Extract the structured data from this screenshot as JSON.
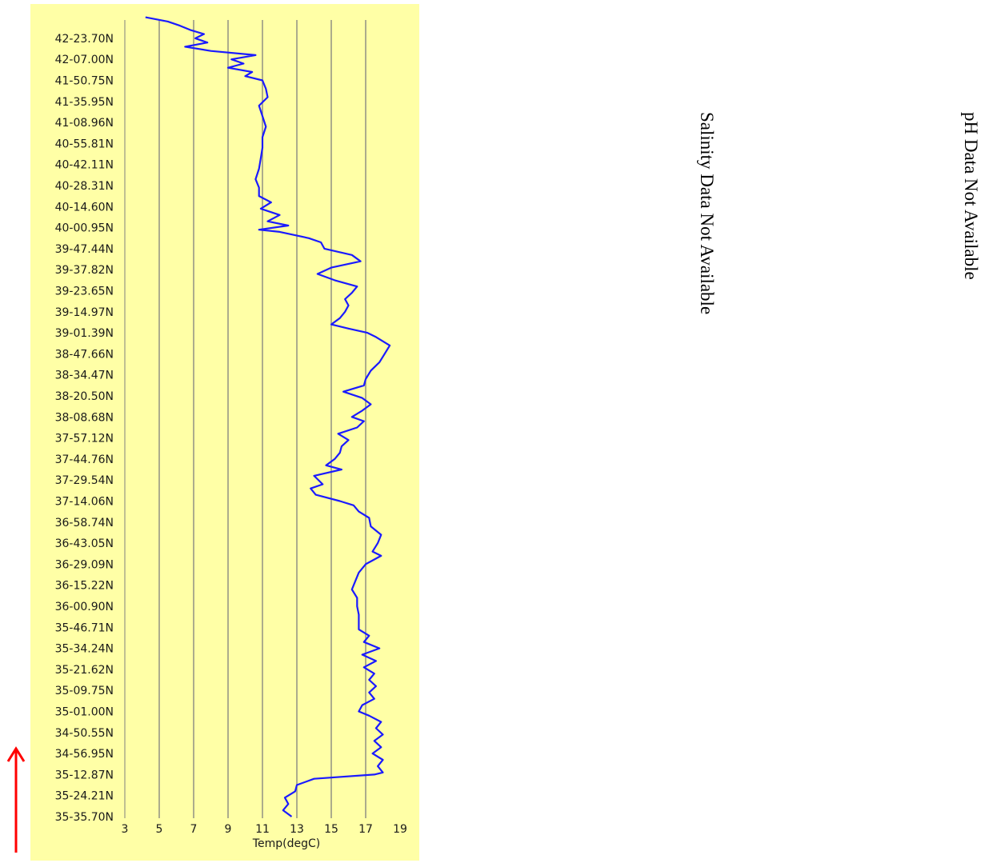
{
  "chart_data": {
    "type": "line",
    "orientation": "vertical-track",
    "xlabel": "Temp(degC)",
    "xlim": [
      3,
      19
    ],
    "xticks": [
      3,
      5,
      7,
      9,
      11,
      13,
      15,
      17,
      19
    ],
    "grid": "vertical",
    "line_color": "#1a1aff",
    "background_color": "#ffffa6",
    "y_tick_labels": [
      "35-35.70N",
      "35-24.21N",
      "35-12.87N",
      "34-56.95N",
      "34-50.55N",
      "35-01.00N",
      "35-09.75N",
      "35-21.62N",
      "35-34.24N",
      "35-46.71N",
      "36-00.90N",
      "36-15.22N",
      "36-29.09N",
      "36-43.05N",
      "36-58.74N",
      "37-14.06N",
      "37-29.54N",
      "37-44.76N",
      "37-57.12N",
      "38-08.68N",
      "38-20.50N",
      "38-34.47N",
      "38-47.66N",
      "39-01.39N",
      "39-14.97N",
      "39-23.65N",
      "39-37.82N",
      "39-47.44N",
      "40-00.95N",
      "40-14.60N",
      "40-28.31N",
      "40-42.11N",
      "40-55.81N",
      "41-08.96N",
      "41-35.95N",
      "41-50.75N",
      "42-07.00N",
      "42-23.70N"
    ],
    "series": [
      {
        "values_by_tick_position": [
          [
            0.0,
            12.7
          ],
          [
            0.3,
            12.2
          ],
          [
            0.6,
            12.5
          ],
          [
            0.9,
            12.3
          ],
          [
            1.2,
            12.9
          ],
          [
            1.5,
            13.0
          ],
          [
            1.8,
            14.0
          ],
          [
            2.0,
            17.5
          ],
          [
            2.1,
            18.0
          ],
          [
            2.4,
            17.7
          ],
          [
            2.7,
            18.0
          ],
          [
            3.0,
            17.4
          ],
          [
            3.3,
            17.9
          ],
          [
            3.6,
            17.5
          ],
          [
            3.9,
            18.0
          ],
          [
            4.2,
            17.6
          ],
          [
            4.5,
            17.9
          ],
          [
            4.8,
            17.2
          ],
          [
            5.0,
            16.6
          ],
          [
            5.3,
            16.8
          ],
          [
            5.6,
            17.5
          ],
          [
            5.9,
            17.2
          ],
          [
            6.2,
            17.6
          ],
          [
            6.5,
            17.2
          ],
          [
            6.8,
            17.5
          ],
          [
            7.1,
            16.9
          ],
          [
            7.4,
            17.6
          ],
          [
            7.7,
            16.8
          ],
          [
            8.0,
            17.8
          ],
          [
            8.3,
            16.9
          ],
          [
            8.6,
            17.2
          ],
          [
            8.9,
            16.6
          ],
          [
            9.2,
            16.6
          ],
          [
            9.6,
            16.6
          ],
          [
            10.0,
            16.5
          ],
          [
            10.4,
            16.5
          ],
          [
            10.8,
            16.2
          ],
          [
            11.2,
            16.4
          ],
          [
            11.6,
            16.6
          ],
          [
            12.0,
            17.0
          ],
          [
            12.4,
            17.9
          ],
          [
            12.6,
            17.4
          ],
          [
            13.0,
            17.7
          ],
          [
            13.4,
            17.9
          ],
          [
            13.8,
            17.3
          ],
          [
            14.2,
            17.2
          ],
          [
            14.5,
            16.6
          ],
          [
            14.8,
            16.3
          ],
          [
            15.0,
            15.5
          ],
          [
            15.3,
            14.1
          ],
          [
            15.6,
            13.8
          ],
          [
            15.8,
            14.5
          ],
          [
            16.2,
            14.0
          ],
          [
            16.5,
            15.6
          ],
          [
            16.7,
            14.7
          ],
          [
            17.0,
            15.2
          ],
          [
            17.3,
            15.5
          ],
          [
            17.6,
            15.6
          ],
          [
            17.9,
            16.0
          ],
          [
            18.2,
            15.4
          ],
          [
            18.5,
            16.5
          ],
          [
            18.8,
            16.9
          ],
          [
            19.0,
            16.2
          ],
          [
            19.3,
            16.8
          ],
          [
            19.6,
            17.3
          ],
          [
            19.9,
            16.8
          ],
          [
            20.2,
            15.7
          ],
          [
            20.5,
            16.9
          ],
          [
            20.8,
            17.0
          ],
          [
            21.2,
            17.3
          ],
          [
            21.6,
            17.8
          ],
          [
            22.0,
            18.1
          ],
          [
            22.4,
            18.4
          ],
          [
            22.8,
            17.6
          ],
          [
            23.0,
            17.1
          ],
          [
            23.2,
            16.0
          ],
          [
            23.4,
            15.0
          ],
          [
            23.7,
            15.5
          ],
          [
            24.0,
            15.8
          ],
          [
            24.3,
            16.0
          ],
          [
            24.6,
            15.8
          ],
          [
            24.9,
            16.2
          ],
          [
            25.2,
            16.5
          ],
          [
            25.5,
            15.2
          ],
          [
            25.8,
            14.2
          ],
          [
            26.1,
            15.0
          ],
          [
            26.4,
            16.7
          ],
          [
            26.7,
            16.2
          ],
          [
            27.0,
            14.6
          ],
          [
            27.3,
            14.4
          ],
          [
            27.5,
            13.7
          ],
          [
            27.8,
            12.0
          ],
          [
            27.9,
            10.8
          ],
          [
            28.1,
            12.5
          ],
          [
            28.3,
            11.3
          ],
          [
            28.6,
            12.0
          ],
          [
            28.9,
            10.9
          ],
          [
            29.2,
            11.5
          ],
          [
            29.5,
            10.8
          ],
          [
            29.9,
            10.8
          ],
          [
            30.3,
            10.6
          ],
          [
            30.8,
            10.8
          ],
          [
            31.3,
            10.9
          ],
          [
            31.8,
            11.0
          ],
          [
            32.3,
            11.0
          ],
          [
            32.8,
            11.2
          ],
          [
            33.3,
            11.0
          ],
          [
            33.8,
            10.8
          ],
          [
            34.2,
            11.3
          ],
          [
            34.6,
            11.2
          ],
          [
            35.0,
            11.0
          ],
          [
            35.2,
            10.0
          ],
          [
            35.4,
            10.4
          ],
          [
            35.6,
            9.0
          ],
          [
            35.8,
            9.9
          ],
          [
            36.0,
            9.2
          ],
          [
            36.2,
            10.6
          ],
          [
            36.4,
            8.0
          ],
          [
            36.6,
            6.5
          ],
          [
            36.8,
            7.8
          ],
          [
            37.0,
            7.1
          ],
          [
            37.2,
            7.6
          ],
          [
            37.4,
            6.8
          ],
          [
            37.6,
            6.2
          ],
          [
            37.8,
            5.5
          ],
          [
            38.0,
            4.2
          ]
        ]
      }
    ]
  },
  "notes": {
    "salinity": "Salinity Data Not Available",
    "ph": "pH Data Not Available"
  },
  "direction_arrow_color": "#ff0000"
}
